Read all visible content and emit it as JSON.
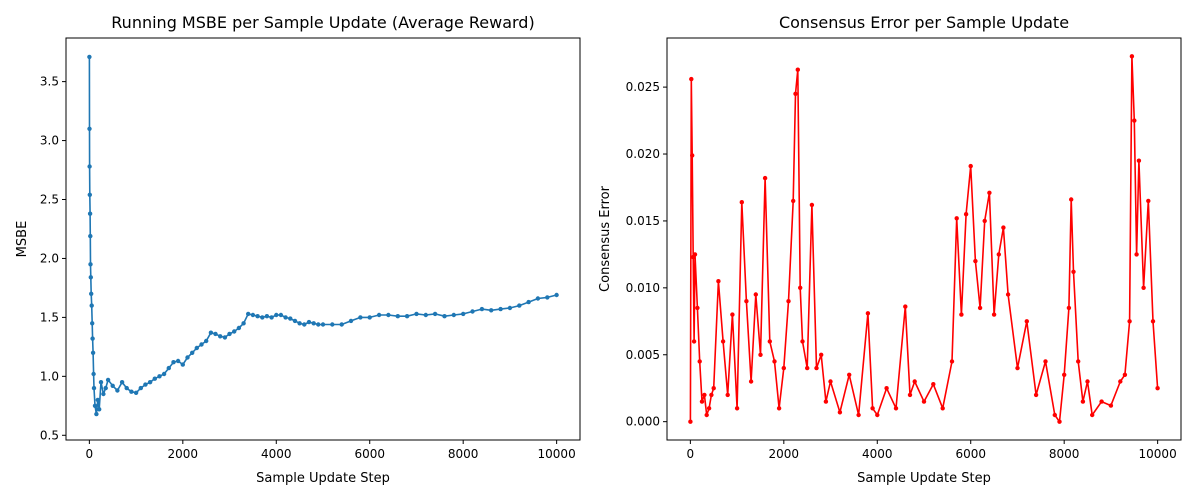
{
  "chart_data": [
    {
      "type": "line",
      "title": "Running MSBE per Sample Update (Average Reward)",
      "xlabel": "Sample Update Step",
      "ylabel": "MSBE",
      "xlim": [
        -500,
        10500
      ],
      "ylim": [
        0.46,
        3.87
      ],
      "xticks": [
        0,
        2000,
        4000,
        6000,
        8000,
        10000
      ],
      "xtick_labels": [
        "0",
        "2000",
        "4000",
        "6000",
        "8000",
        "10000"
      ],
      "yticks": [
        0.5,
        1.0,
        1.5,
        2.0,
        2.5,
        3.0,
        3.5
      ],
      "ytick_labels": [
        "0.5",
        "1.0",
        "1.5",
        "2.0",
        "2.5",
        "3.0",
        "3.5"
      ],
      "grid": false,
      "color": "#1f77b4",
      "marker": "circle",
      "series": [
        {
          "x": [
            0,
            3,
            6,
            10,
            15,
            20,
            25,
            30,
            40,
            50,
            60,
            70,
            80,
            90,
            100,
            120,
            150,
            180,
            210,
            250,
            300,
            350,
            400,
            500,
            600,
            700,
            800,
            900,
            1000,
            1100,
            1200,
            1300,
            1400,
            1500,
            1600,
            1700,
            1800,
            1900,
            2000,
            2100,
            2200,
            2300,
            2400,
            2500,
            2600,
            2700,
            2800,
            2900,
            3000,
            3100,
            3200,
            3300,
            3400,
            3500,
            3600,
            3700,
            3800,
            3900,
            4000,
            4100,
            4200,
            4300,
            4400,
            4500,
            4600,
            4700,
            4800,
            4900,
            5000,
            5200,
            5400,
            5600,
            5800,
            6000,
            6200,
            6400,
            6600,
            6800,
            7000,
            7200,
            7400,
            7600,
            7800,
            8000,
            8200,
            8400,
            8600,
            8800,
            9000,
            9200,
            9400,
            9600,
            9800,
            10000
          ],
          "y": [
            3.71,
            3.1,
            2.78,
            2.54,
            2.38,
            2.19,
            1.95,
            1.84,
            1.7,
            1.6,
            1.45,
            1.32,
            1.2,
            1.02,
            0.9,
            0.75,
            0.68,
            0.8,
            0.72,
            0.95,
            0.85,
            0.9,
            0.97,
            0.92,
            0.88,
            0.95,
            0.9,
            0.87,
            0.86,
            0.9,
            0.93,
            0.95,
            0.98,
            1.0,
            1.02,
            1.07,
            1.12,
            1.13,
            1.1,
            1.16,
            1.2,
            1.24,
            1.27,
            1.3,
            1.37,
            1.36,
            1.34,
            1.33,
            1.36,
            1.38,
            1.41,
            1.45,
            1.53,
            1.52,
            1.51,
            1.5,
            1.51,
            1.5,
            1.52,
            1.52,
            1.5,
            1.49,
            1.47,
            1.45,
            1.44,
            1.46,
            1.45,
            1.44,
            1.44,
            1.44,
            1.44,
            1.47,
            1.5,
            1.5,
            1.52,
            1.52,
            1.51,
            1.51,
            1.53,
            1.52,
            1.53,
            1.51,
            1.52,
            1.53,
            1.55,
            1.57,
            1.56,
            1.57,
            1.58,
            1.6,
            1.63,
            1.66,
            1.67,
            1.69
          ]
        }
      ]
    },
    {
      "type": "line",
      "title": "Consensus Error per Sample Update",
      "xlabel": "Sample Update Step",
      "ylabel": "Consensus Error",
      "xlim": [
        -500,
        10500
      ],
      "ylim": [
        -0.00137,
        0.02867
      ],
      "xticks": [
        0,
        2000,
        4000,
        6000,
        8000,
        10000
      ],
      "xtick_labels": [
        "0",
        "2000",
        "4000",
        "6000",
        "8000",
        "10000"
      ],
      "yticks": [
        0.0,
        0.005,
        0.01,
        0.015,
        0.02,
        0.025
      ],
      "ytick_labels": [
        "0.000",
        "0.005",
        "0.010",
        "0.015",
        "0.020",
        "0.025"
      ],
      "grid": false,
      "color": "#ff0000",
      "marker": "circle",
      "series": [
        {
          "x": [
            0,
            20,
            40,
            60,
            80,
            100,
            150,
            200,
            250,
            300,
            350,
            400,
            450,
            500,
            600,
            700,
            800,
            900,
            1000,
            1100,
            1200,
            1300,
            1400,
            1500,
            1600,
            1700,
            1800,
            1900,
            2000,
            2100,
            2200,
            2250,
            2300,
            2350,
            2400,
            2500,
            2600,
            2700,
            2800,
            2900,
            3000,
            3200,
            3400,
            3600,
            3800,
            3900,
            4000,
            4200,
            4400,
            4600,
            4700,
            4800,
            5000,
            5200,
            5400,
            5600,
            5700,
            5800,
            5900,
            6000,
            6100,
            6200,
            6300,
            6400,
            6500,
            6600,
            6700,
            6800,
            7000,
            7200,
            7400,
            7600,
            7800,
            7900,
            8000,
            8100,
            8150,
            8200,
            8300,
            8400,
            8500,
            8600,
            8800,
            9000,
            9200,
            9300,
            9400,
            9450,
            9500,
            9550,
            9600,
            9700,
            9800,
            9900,
            10000
          ],
          "y": [
            0.0,
            0.0256,
            0.0199,
            0.0123,
            0.006,
            0.0125,
            0.0085,
            0.0045,
            0.0015,
            0.002,
            0.0005,
            0.001,
            0.002,
            0.0025,
            0.0105,
            0.006,
            0.002,
            0.008,
            0.001,
            0.0164,
            0.009,
            0.003,
            0.0095,
            0.005,
            0.0182,
            0.006,
            0.0045,
            0.001,
            0.004,
            0.009,
            0.0165,
            0.0245,
            0.0263,
            0.01,
            0.006,
            0.004,
            0.0162,
            0.004,
            0.005,
            0.0015,
            0.003,
            0.0007,
            0.0035,
            0.0005,
            0.0081,
            0.001,
            0.0005,
            0.0025,
            0.001,
            0.0086,
            0.002,
            0.003,
            0.0015,
            0.0028,
            0.001,
            0.0045,
            0.0152,
            0.008,
            0.0155,
            0.0191,
            0.012,
            0.0085,
            0.015,
            0.0171,
            0.008,
            0.0125,
            0.0145,
            0.0095,
            0.004,
            0.0075,
            0.002,
            0.0045,
            0.0005,
            0.0,
            0.0035,
            0.0085,
            0.0166,
            0.0112,
            0.0045,
            0.0015,
            0.003,
            0.0005,
            0.0015,
            0.0012,
            0.003,
            0.0035,
            0.0075,
            0.0273,
            0.0225,
            0.0125,
            0.0195,
            0.01,
            0.0165,
            0.0075,
            0.0025
          ]
        }
      ]
    }
  ]
}
